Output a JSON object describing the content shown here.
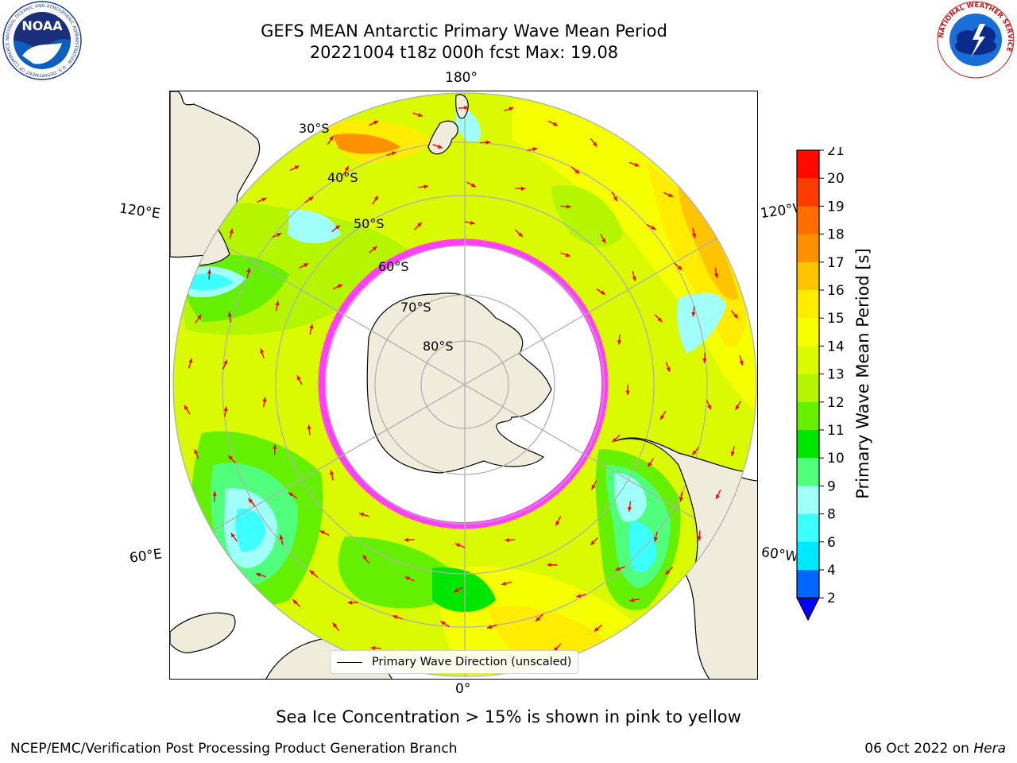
{
  "header": {
    "title_line1": "GEFS MEAN Antarctic Primary Wave Mean Period",
    "title_line2": "20221004 t18z 000h fcst   Max: 19.08"
  },
  "logos": {
    "noaa": {
      "text": "NOAA",
      "ring_text": "NATIONAL OCEANIC AND ATMOSPHERIC ADMINISTRATION · U.S. DEPARTMENT OF COMMERCE"
    },
    "nws": {
      "ring_text": "NATIONAL WEATHER SERVICE"
    }
  },
  "map": {
    "projection": "south-polar-stereographic",
    "longitude_labels": {
      "top": "180°",
      "bottom": "0°",
      "upper_left": "120°E",
      "lower_left": "60°E",
      "upper_right": "120°W",
      "lower_right": "60°W"
    },
    "latitude_labels": [
      "30°S",
      "40°S",
      "50°S",
      "60°S",
      "70°S",
      "80°S"
    ],
    "legend_label": "Primary Wave Direction (unscaled)",
    "colors": {
      "land": "#efecdc",
      "gridline": "#b0b0b0",
      "arrow": "#ff0000",
      "sea_ice": "#ff40ff"
    }
  },
  "colorbar": {
    "label": "Primary Wave Mean Period [s]",
    "ticks": [
      "2",
      "4",
      "6",
      "8",
      "9",
      "10",
      "11",
      "12",
      "13",
      "14",
      "15",
      "16",
      "17",
      "18",
      "19",
      "20",
      "21"
    ],
    "colors": [
      "#0066ff",
      "#00e8ff",
      "#3cffff",
      "#a0fff8",
      "#50ff7c",
      "#00e600",
      "#64f000",
      "#b4f500",
      "#d9fa00",
      "#f5ff00",
      "#ffec00",
      "#ffc400",
      "#ff9000",
      "#ff6c00",
      "#ff3c00",
      "#ff0800"
    ],
    "extend_color": "#0000ff"
  },
  "footer": {
    "subtitle": "Sea Ice Concentration > 15% is shown in pink to yellow",
    "credit": "NCEP/EMC/Verification Post Processing Product Generation Branch",
    "date": "06 Oct 2022 on",
    "system": "Hera"
  }
}
